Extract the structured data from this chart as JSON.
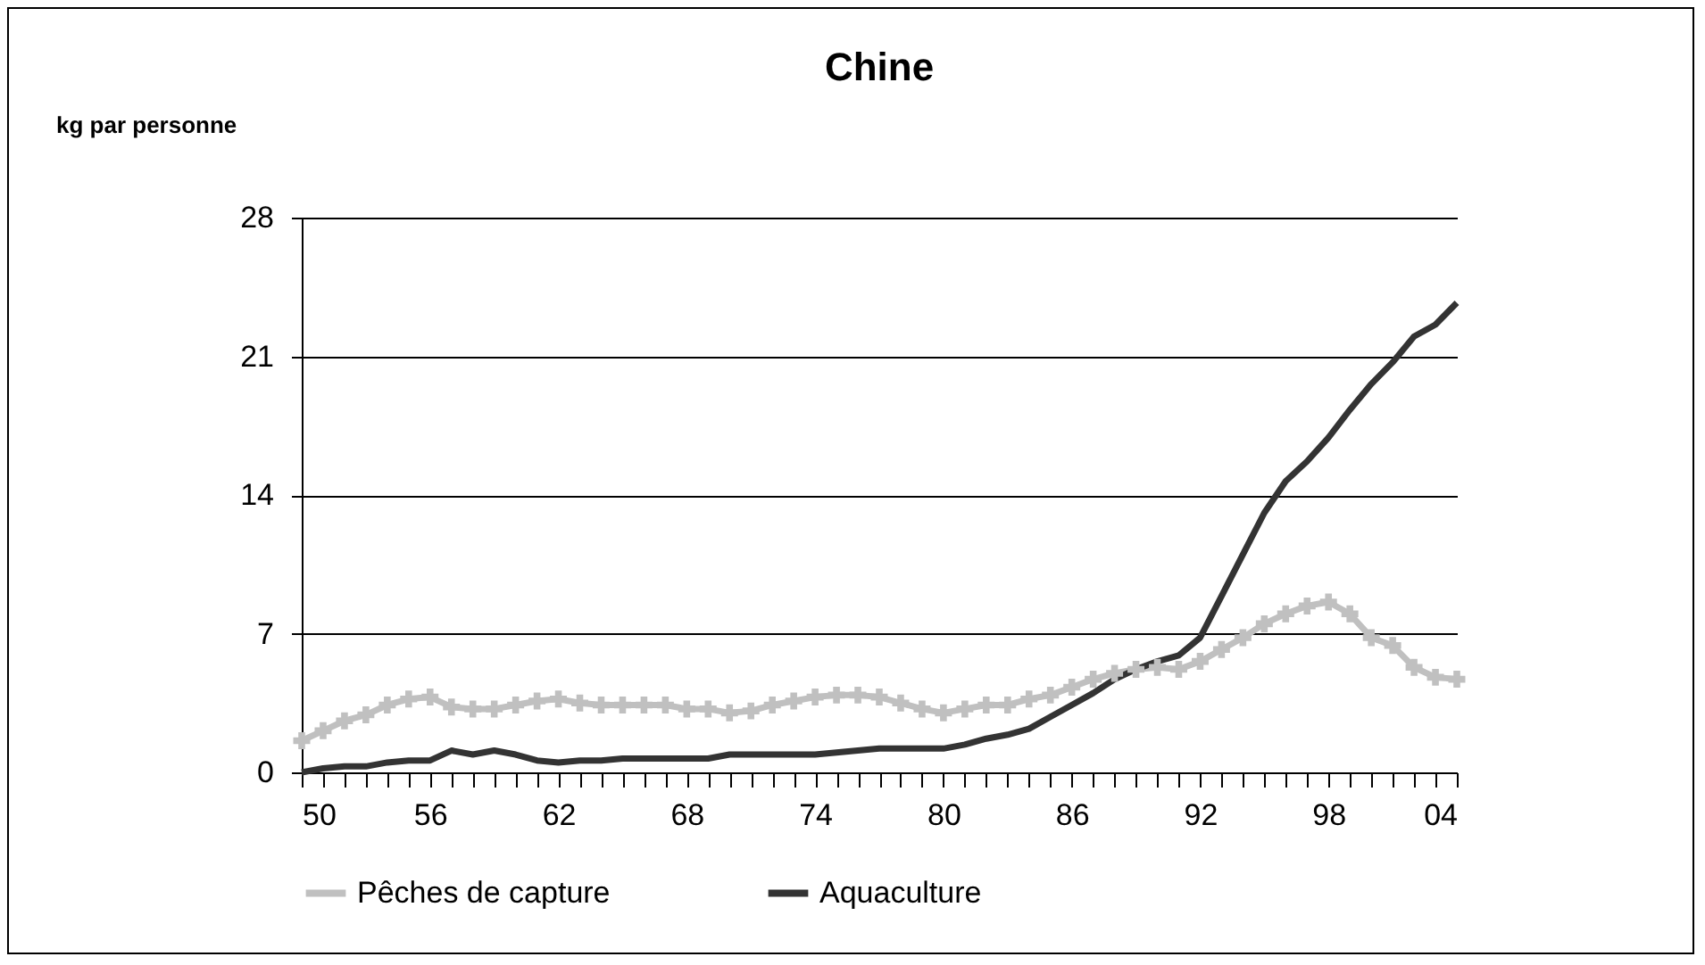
{
  "chart_data": {
    "type": "line",
    "title": "Chine",
    "ylabel": "kg par personne",
    "x": [
      1950,
      1951,
      1952,
      1953,
      1954,
      1955,
      1956,
      1957,
      1958,
      1959,
      1960,
      1961,
      1962,
      1963,
      1964,
      1965,
      1966,
      1967,
      1968,
      1969,
      1970,
      1971,
      1972,
      1973,
      1974,
      1975,
      1976,
      1977,
      1978,
      1979,
      1980,
      1981,
      1982,
      1983,
      1984,
      1985,
      1986,
      1987,
      1988,
      1989,
      1990,
      1991,
      1992,
      1993,
      1994,
      1995,
      1996,
      1997,
      1998,
      1999,
      2000,
      2001,
      2002,
      2003,
      2004
    ],
    "series": [
      {
        "name": "Pêches de capture",
        "color": "#c0c0c0",
        "marker": "cross",
        "values": [
          1.6,
          2.1,
          2.6,
          2.9,
          3.4,
          3.7,
          3.8,
          3.3,
          3.2,
          3.2,
          3.4,
          3.6,
          3.7,
          3.5,
          3.4,
          3.4,
          3.4,
          3.4,
          3.2,
          3.2,
          3.0,
          3.1,
          3.4,
          3.6,
          3.8,
          3.9,
          3.9,
          3.8,
          3.5,
          3.2,
          3.0,
          3.2,
          3.4,
          3.4,
          3.7,
          3.9,
          4.3,
          4.7,
          5.0,
          5.2,
          5.3,
          5.2,
          5.6,
          6.2,
          6.8,
          7.5,
          8.0,
          8.4,
          8.6,
          8.0,
          6.8,
          6.4,
          5.3,
          4.8,
          4.7
        ]
      },
      {
        "name": "Aquaculture",
        "color": "#333333",
        "marker": "none",
        "values": [
          0.0,
          0.2,
          0.3,
          0.3,
          0.5,
          0.6,
          0.6,
          1.1,
          0.9,
          1.1,
          0.9,
          0.6,
          0.5,
          0.6,
          0.6,
          0.7,
          0.7,
          0.7,
          0.7,
          0.7,
          0.9,
          0.9,
          0.9,
          0.9,
          0.9,
          1.0,
          1.1,
          1.2,
          1.2,
          1.2,
          1.2,
          1.4,
          1.7,
          1.9,
          2.2,
          2.8,
          3.4,
          4.0,
          4.7,
          5.2,
          5.6,
          5.9,
          6.8,
          8.9,
          11.0,
          13.1,
          14.7,
          15.7,
          16.9,
          18.3,
          19.6,
          20.7,
          22.0,
          22.6,
          23.7
        ]
      }
    ],
    "xlim": [
      1950,
      2004
    ],
    "xticks": [
      {
        "value": 1950,
        "label": "50"
      },
      {
        "value": 1951,
        "label": null
      },
      {
        "value": 1952,
        "label": null
      },
      {
        "value": 1953,
        "label": null
      },
      {
        "value": 1954,
        "label": null
      },
      {
        "value": 1955,
        "label": null
      },
      {
        "value": 1956,
        "label": "56"
      },
      {
        "value": 1957,
        "label": null
      },
      {
        "value": 1958,
        "label": null
      },
      {
        "value": 1959,
        "label": null
      },
      {
        "value": 1960,
        "label": null
      },
      {
        "value": 1961,
        "label": null
      },
      {
        "value": 1962,
        "label": "62"
      },
      {
        "value": 1963,
        "label": null
      },
      {
        "value": 1964,
        "label": null
      },
      {
        "value": 1965,
        "label": null
      },
      {
        "value": 1966,
        "label": null
      },
      {
        "value": 1967,
        "label": null
      },
      {
        "value": 1968,
        "label": "68"
      },
      {
        "value": 1969,
        "label": null
      },
      {
        "value": 1970,
        "label": null
      },
      {
        "value": 1971,
        "label": null
      },
      {
        "value": 1972,
        "label": null
      },
      {
        "value": 1973,
        "label": null
      },
      {
        "value": 1974,
        "label": "74"
      },
      {
        "value": 1975,
        "label": null
      },
      {
        "value": 1976,
        "label": null
      },
      {
        "value": 1977,
        "label": null
      },
      {
        "value": 1978,
        "label": null
      },
      {
        "value": 1979,
        "label": null
      },
      {
        "value": 1980,
        "label": "80"
      },
      {
        "value": 1981,
        "label": null
      },
      {
        "value": 1982,
        "label": null
      },
      {
        "value": 1983,
        "label": null
      },
      {
        "value": 1984,
        "label": null
      },
      {
        "value": 1985,
        "label": null
      },
      {
        "value": 1986,
        "label": "86"
      },
      {
        "value": 1987,
        "label": null
      },
      {
        "value": 1988,
        "label": null
      },
      {
        "value": 1989,
        "label": null
      },
      {
        "value": 1990,
        "label": null
      },
      {
        "value": 1991,
        "label": null
      },
      {
        "value": 1992,
        "label": "92"
      },
      {
        "value": 1993,
        "label": null
      },
      {
        "value": 1994,
        "label": null
      },
      {
        "value": 1995,
        "label": null
      },
      {
        "value": 1996,
        "label": null
      },
      {
        "value": 1997,
        "label": null
      },
      {
        "value": 1998,
        "label": "98"
      },
      {
        "value": 1999,
        "label": null
      },
      {
        "value": 2000,
        "label": null
      },
      {
        "value": 2001,
        "label": null
      },
      {
        "value": 2002,
        "label": null
      },
      {
        "value": 2003,
        "label": null
      },
      {
        "value": 2004,
        "label": "04"
      }
    ],
    "ylim": [
      0,
      28
    ],
    "yticks": [
      0,
      7,
      14,
      21,
      28
    ],
    "grid": "y",
    "legend": "bottom",
    "line_style": "solid"
  }
}
